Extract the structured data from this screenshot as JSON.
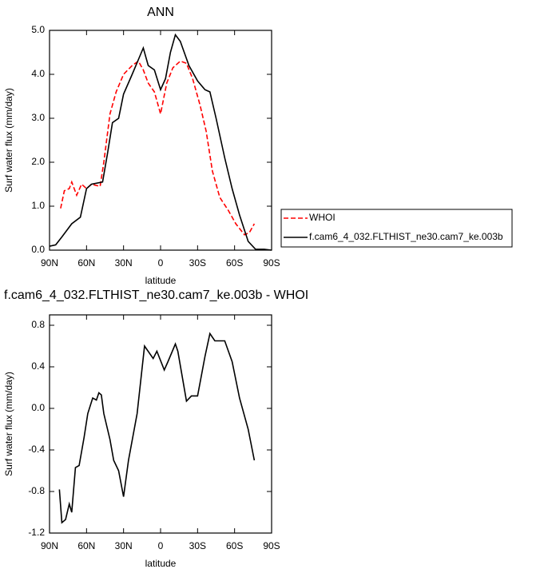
{
  "chart_data": [
    {
      "type": "line",
      "title": "ANN",
      "xlabel": "latitude",
      "ylabel": "Surf water flux (mm/day)",
      "xlim": [
        90,
        -90
      ],
      "xticks": [
        {
          "value": 90,
          "label": "90N"
        },
        {
          "value": 60,
          "label": "60N"
        },
        {
          "value": 30,
          "label": "30N"
        },
        0,
        {
          "value": -30,
          "label": "30S"
        },
        {
          "value": -60,
          "label": "60S"
        },
        {
          "value": -90,
          "label": "90S"
        }
      ],
      "ylim": [
        0,
        5
      ],
      "yticks": [
        {
          "value": 0,
          "label": "0.0"
        },
        {
          "value": 1,
          "label": "1.0"
        },
        {
          "value": 2,
          "label": "2.0"
        },
        {
          "value": 3,
          "label": "3.0"
        },
        {
          "value": 4,
          "label": "4.0"
        },
        {
          "value": 5,
          "label": "5.0"
        }
      ],
      "series": [
        {
          "name": "WHOI",
          "color": "#ff0000",
          "style": "dashed",
          "x": [
            81,
            78,
            74,
            72,
            68,
            64,
            60,
            56,
            49,
            46,
            41,
            36,
            30,
            23,
            18,
            14,
            10,
            5,
            0,
            -5,
            -10,
            -16,
            -21,
            -26,
            -32,
            -37,
            -42,
            -48,
            -55,
            -61,
            -68,
            -72,
            -76
          ],
          "values": [
            0.95,
            1.35,
            1.4,
            1.55,
            1.25,
            1.5,
            1.4,
            1.5,
            1.45,
            2.0,
            3.1,
            3.6,
            4.0,
            4.2,
            4.3,
            4.1,
            3.8,
            3.6,
            3.1,
            3.8,
            4.15,
            4.3,
            4.25,
            3.9,
            3.3,
            2.7,
            1.8,
            1.2,
            0.9,
            0.6,
            0.35,
            0.4,
            0.6
          ]
        },
        {
          "name": "f.cam6_4_032.FLTHIST_ne30.cam7_ke.003b",
          "color": "#000000",
          "style": "solid",
          "x": [
            90,
            85,
            80,
            72,
            65,
            60,
            56,
            47,
            43,
            39,
            34,
            30,
            23,
            17,
            14,
            10,
            5,
            0,
            -4,
            -8,
            -12,
            -16,
            -23,
            -30,
            -36,
            -40,
            -45,
            -52,
            -58,
            -64,
            -71,
            -77,
            -84,
            -90
          ],
          "values": [
            0.09,
            0.12,
            0.3,
            0.6,
            0.75,
            1.4,
            1.5,
            1.55,
            2.2,
            2.9,
            3.0,
            3.55,
            4.0,
            4.4,
            4.6,
            4.2,
            4.1,
            3.65,
            3.9,
            4.5,
            4.9,
            4.75,
            4.2,
            3.85,
            3.65,
            3.6,
            3.0,
            2.1,
            1.4,
            0.8,
            0.2,
            0.02,
            0.02,
            0
          ]
        }
      ]
    },
    {
      "type": "line",
      "title": "f.cam6_4_032.FLTHIST_ne30.cam7_ke.003b - WHOI",
      "xlabel": "latitude",
      "ylabel": "Surf water flux (mm/day)",
      "xlim": [
        90,
        -90
      ],
      "xticks": [
        {
          "value": 90,
          "label": "90N"
        },
        {
          "value": 60,
          "label": "60N"
        },
        {
          "value": 30,
          "label": "30N"
        },
        0,
        {
          "value": -30,
          "label": "30S"
        },
        {
          "value": -60,
          "label": "60S"
        },
        {
          "value": -90,
          "label": "90S"
        }
      ],
      "ylim": [
        -1.2,
        0.9
      ],
      "yticks": [
        {
          "value": -1.2,
          "label": "-1.2"
        },
        {
          "value": -0.8,
          "label": "-0.8"
        },
        {
          "value": -0.4,
          "label": "-0.4"
        },
        {
          "value": 0,
          "label": "0.0"
        },
        0.4,
        0.8
      ],
      "series": [
        {
          "color": "#000000",
          "style": "solid",
          "x": [
            82,
            80,
            77,
            74,
            72,
            69,
            66,
            62,
            59,
            55,
            52,
            50,
            48,
            46,
            41,
            38,
            34,
            30,
            26,
            19,
            13,
            6,
            3,
            -3,
            -6,
            -12,
            -14,
            -21,
            -25,
            -30,
            -36,
            -40,
            -44,
            -52,
            -58,
            -64,
            -71,
            -76
          ],
          "values": [
            -0.78,
            -1.1,
            -1.07,
            -0.92,
            -1.0,
            -0.57,
            -0.55,
            -0.28,
            -0.05,
            0.1,
            0.08,
            0.15,
            0.13,
            -0.05,
            -0.3,
            -0.5,
            -0.6,
            -0.85,
            -0.5,
            -0.05,
            0.6,
            0.48,
            0.55,
            0.37,
            0.45,
            0.62,
            0.55,
            0.07,
            0.12,
            0.12,
            0.5,
            0.72,
            0.65,
            0.65,
            0.45,
            0.1,
            -0.2,
            -0.5
          ]
        }
      ]
    }
  ]
}
